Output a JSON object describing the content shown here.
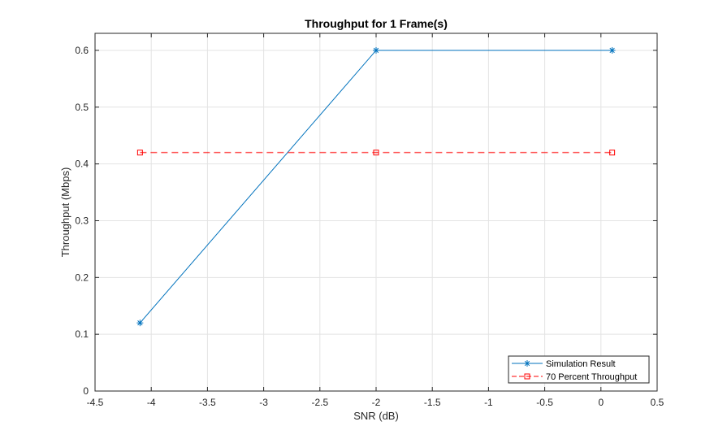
{
  "chart_data": {
    "type": "line",
    "title": "Throughput for 1 Frame(s)",
    "xlabel": "SNR (dB)",
    "ylabel": "Throughput (Mbps)",
    "xlim": [
      -4.5,
      0.5
    ],
    "ylim": [
      0,
      0.63
    ],
    "xticks": [
      -4.5,
      -4,
      -3.5,
      -3,
      -2.5,
      -2,
      -1.5,
      -1,
      -0.5,
      0,
      0.5
    ],
    "xtick_labels": [
      "-4.5",
      "-4",
      "-3.5",
      "-3",
      "-2.5",
      "-2",
      "-1.5",
      "-1",
      "-0.5",
      "0",
      "0.5"
    ],
    "yticks": [
      0,
      0.1,
      0.2,
      0.3,
      0.4,
      0.5,
      0.6
    ],
    "ytick_labels": [
      "0",
      "0.1",
      "0.2",
      "0.3",
      "0.4",
      "0.5",
      "0.6"
    ],
    "grid": true,
    "legend_position": "bottom-right",
    "series": [
      {
        "name": "Simulation Result",
        "x": [
          -4.1,
          -2,
          0.1
        ],
        "y": [
          0.12,
          0.6,
          0.6
        ],
        "color": "#0072BD",
        "line_style": "solid",
        "marker": "asterisk"
      },
      {
        "name": "70 Percent Throughput",
        "x": [
          -4.1,
          -2,
          0.1
        ],
        "y": [
          0.42,
          0.42,
          0.42
        ],
        "color": "#FF0000",
        "line_style": "dashed",
        "marker": "square"
      }
    ]
  }
}
